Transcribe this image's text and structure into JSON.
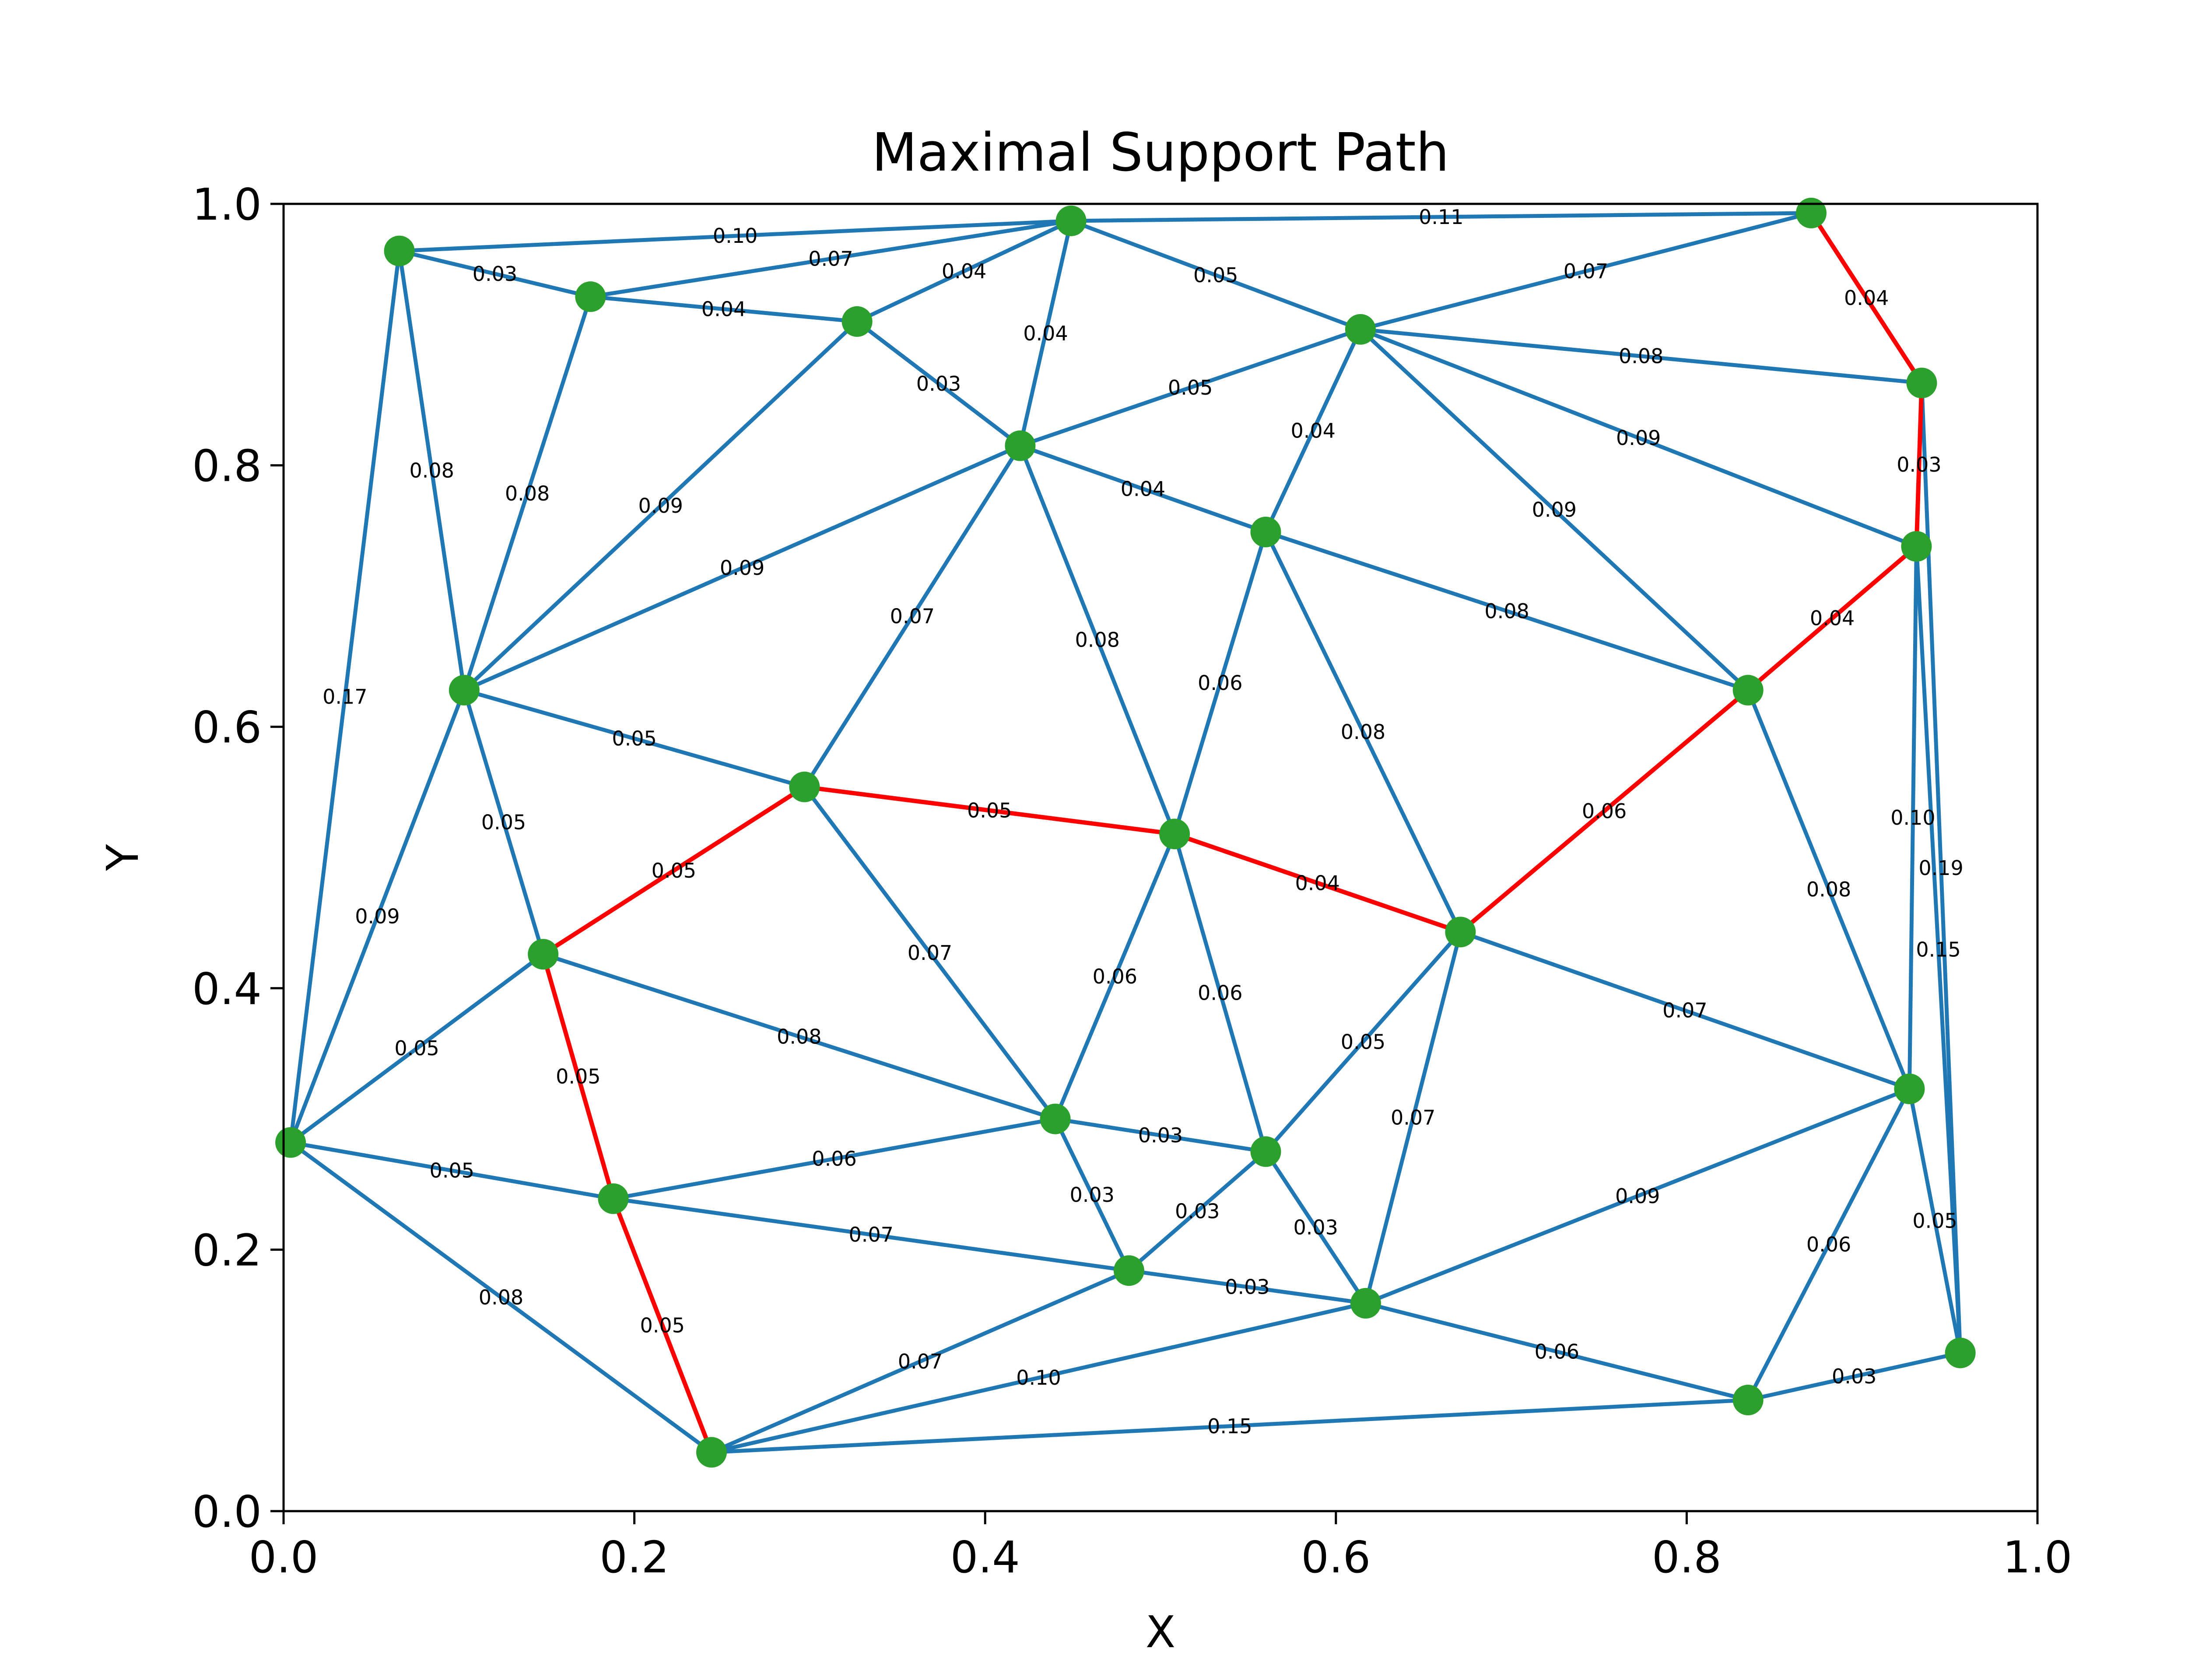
{
  "chart_data": {
    "type": "network",
    "title": "Maximal Support Path",
    "xlabel": "X",
    "ylabel": "Y",
    "xlim": [
      0.0,
      1.0
    ],
    "ylim": [
      0.0,
      1.0
    ],
    "xticks": [
      "0.0",
      "0.2",
      "0.4",
      "0.6",
      "0.8",
      "1.0"
    ],
    "yticks": [
      "0.0",
      "0.2",
      "0.4",
      "0.6",
      "0.8",
      "1.0"
    ],
    "grid": false,
    "colors": {
      "edge": "#1f77b4",
      "path": "#ff0000",
      "node": "#2ca02c",
      "frame": "#000000"
    },
    "nodes": [
      {
        "x": 0.066,
        "y": 0.964
      },
      {
        "x": 0.175,
        "y": 0.929
      },
      {
        "x": 0.327,
        "y": 0.91
      },
      {
        "x": 0.449,
        "y": 0.987
      },
      {
        "x": 0.871,
        "y": 0.993
      },
      {
        "x": 0.614,
        "y": 0.904
      },
      {
        "x": 0.934,
        "y": 0.863
      },
      {
        "x": 0.42,
        "y": 0.815
      },
      {
        "x": 0.56,
        "y": 0.749
      },
      {
        "x": 0.931,
        "y": 0.738
      },
      {
        "x": 0.103,
        "y": 0.628
      },
      {
        "x": 0.835,
        "y": 0.628
      },
      {
        "x": 0.297,
        "y": 0.554
      },
      {
        "x": 0.508,
        "y": 0.518
      },
      {
        "x": 0.671,
        "y": 0.443
      },
      {
        "x": 0.148,
        "y": 0.426
      },
      {
        "x": 0.927,
        "y": 0.323
      },
      {
        "x": 0.44,
        "y": 0.3
      },
      {
        "x": 0.56,
        "y": 0.275
      },
      {
        "x": 0.004,
        "y": 0.282
      },
      {
        "x": 0.188,
        "y": 0.239
      },
      {
        "x": 0.482,
        "y": 0.184
      },
      {
        "x": 0.617,
        "y": 0.159
      },
      {
        "x": 0.956,
        "y": 0.121
      },
      {
        "x": 0.835,
        "y": 0.085
      },
      {
        "x": 0.244,
        "y": 0.045
      }
    ],
    "edges": [
      {
        "from": 0,
        "to": 3,
        "label": "0.10"
      },
      {
        "from": 0,
        "to": 1,
        "label": "0.03"
      },
      {
        "from": 0,
        "to": 10,
        "label": "0.08"
      },
      {
        "from": 0,
        "to": 19,
        "label": "0.17"
      },
      {
        "from": 1,
        "to": 3,
        "label": "0.07"
      },
      {
        "from": 1,
        "to": 2,
        "label": "0.04"
      },
      {
        "from": 1,
        "to": 10,
        "label": "0.08"
      },
      {
        "from": 2,
        "to": 3,
        "label": "0.04"
      },
      {
        "from": 2,
        "to": 7,
        "label": "0.03"
      },
      {
        "from": 2,
        "to": 10,
        "label": "0.09"
      },
      {
        "from": 3,
        "to": 4,
        "label": "0.11"
      },
      {
        "from": 3,
        "to": 5,
        "label": "0.05"
      },
      {
        "from": 3,
        "to": 7,
        "label": "0.04"
      },
      {
        "from": 4,
        "to": 5,
        "label": "0.07"
      },
      {
        "from": 4,
        "to": 6,
        "label": "0.04"
      },
      {
        "from": 5,
        "to": 6,
        "label": "0.08"
      },
      {
        "from": 5,
        "to": 9,
        "label": "0.09"
      },
      {
        "from": 5,
        "to": 7,
        "label": "0.05"
      },
      {
        "from": 5,
        "to": 8,
        "label": "0.04"
      },
      {
        "from": 5,
        "to": 11,
        "label": "0.09"
      },
      {
        "from": 6,
        "to": 9,
        "label": "0.03"
      },
      {
        "from": 6,
        "to": 23,
        "label": "0.19"
      },
      {
        "from": 7,
        "to": 10,
        "label": "0.09"
      },
      {
        "from": 7,
        "to": 8,
        "label": "0.04"
      },
      {
        "from": 7,
        "to": 12,
        "label": "0.07"
      },
      {
        "from": 7,
        "to": 13,
        "label": "0.08"
      },
      {
        "from": 8,
        "to": 11,
        "label": "0.08"
      },
      {
        "from": 8,
        "to": 13,
        "label": "0.06"
      },
      {
        "from": 8,
        "to": 14,
        "label": "0.08"
      },
      {
        "from": 9,
        "to": 11,
        "label": "0.04"
      },
      {
        "from": 9,
        "to": 16,
        "label": "0.10"
      },
      {
        "from": 9,
        "to": 23,
        "label": "0.15"
      },
      {
        "from": 10,
        "to": 12,
        "label": "0.05"
      },
      {
        "from": 10,
        "to": 15,
        "label": "0.05"
      },
      {
        "from": 10,
        "to": 19,
        "label": "0.09"
      },
      {
        "from": 11,
        "to": 14,
        "label": "0.06"
      },
      {
        "from": 11,
        "to": 16,
        "label": "0.08"
      },
      {
        "from": 12,
        "to": 13,
        "label": "0.05"
      },
      {
        "from": 12,
        "to": 15,
        "label": "0.05"
      },
      {
        "from": 12,
        "to": 17,
        "label": "0.07"
      },
      {
        "from": 13,
        "to": 14,
        "label": "0.04"
      },
      {
        "from": 13,
        "to": 17,
        "label": "0.06"
      },
      {
        "from": 13,
        "to": 18,
        "label": "0.06"
      },
      {
        "from": 14,
        "to": 16,
        "label": "0.07"
      },
      {
        "from": 14,
        "to": 18,
        "label": "0.05"
      },
      {
        "from": 14,
        "to": 22,
        "label": "0.07"
      },
      {
        "from": 15,
        "to": 17,
        "label": "0.08"
      },
      {
        "from": 15,
        "to": 19,
        "label": "0.05"
      },
      {
        "from": 15,
        "to": 20,
        "label": "0.05"
      },
      {
        "from": 16,
        "to": 22,
        "label": "0.09"
      },
      {
        "from": 16,
        "to": 24,
        "label": "0.06"
      },
      {
        "from": 16,
        "to": 23,
        "label": "0.05"
      },
      {
        "from": 17,
        "to": 20,
        "label": "0.06"
      },
      {
        "from": 17,
        "to": 18,
        "label": "0.03"
      },
      {
        "from": 17,
        "to": 21,
        "label": "0.03"
      },
      {
        "from": 18,
        "to": 21,
        "label": "0.03"
      },
      {
        "from": 18,
        "to": 22,
        "label": "0.03"
      },
      {
        "from": 19,
        "to": 20,
        "label": "0.05"
      },
      {
        "from": 19,
        "to": 25,
        "label": "0.08"
      },
      {
        "from": 20,
        "to": 21,
        "label": "0.07"
      },
      {
        "from": 20,
        "to": 25,
        "label": "0.05"
      },
      {
        "from": 21,
        "to": 22,
        "label": "0.03"
      },
      {
        "from": 21,
        "to": 25,
        "label": "0.07"
      },
      {
        "from": 22,
        "to": 25,
        "label": "0.10"
      },
      {
        "from": 22,
        "to": 24,
        "label": "0.06"
      },
      {
        "from": 23,
        "to": 24,
        "label": "0.03"
      },
      {
        "from": 24,
        "to": 25,
        "label": "0.15"
      }
    ],
    "path": [
      25,
      20,
      15,
      12,
      13,
      14,
      11,
      9,
      6,
      4
    ]
  }
}
